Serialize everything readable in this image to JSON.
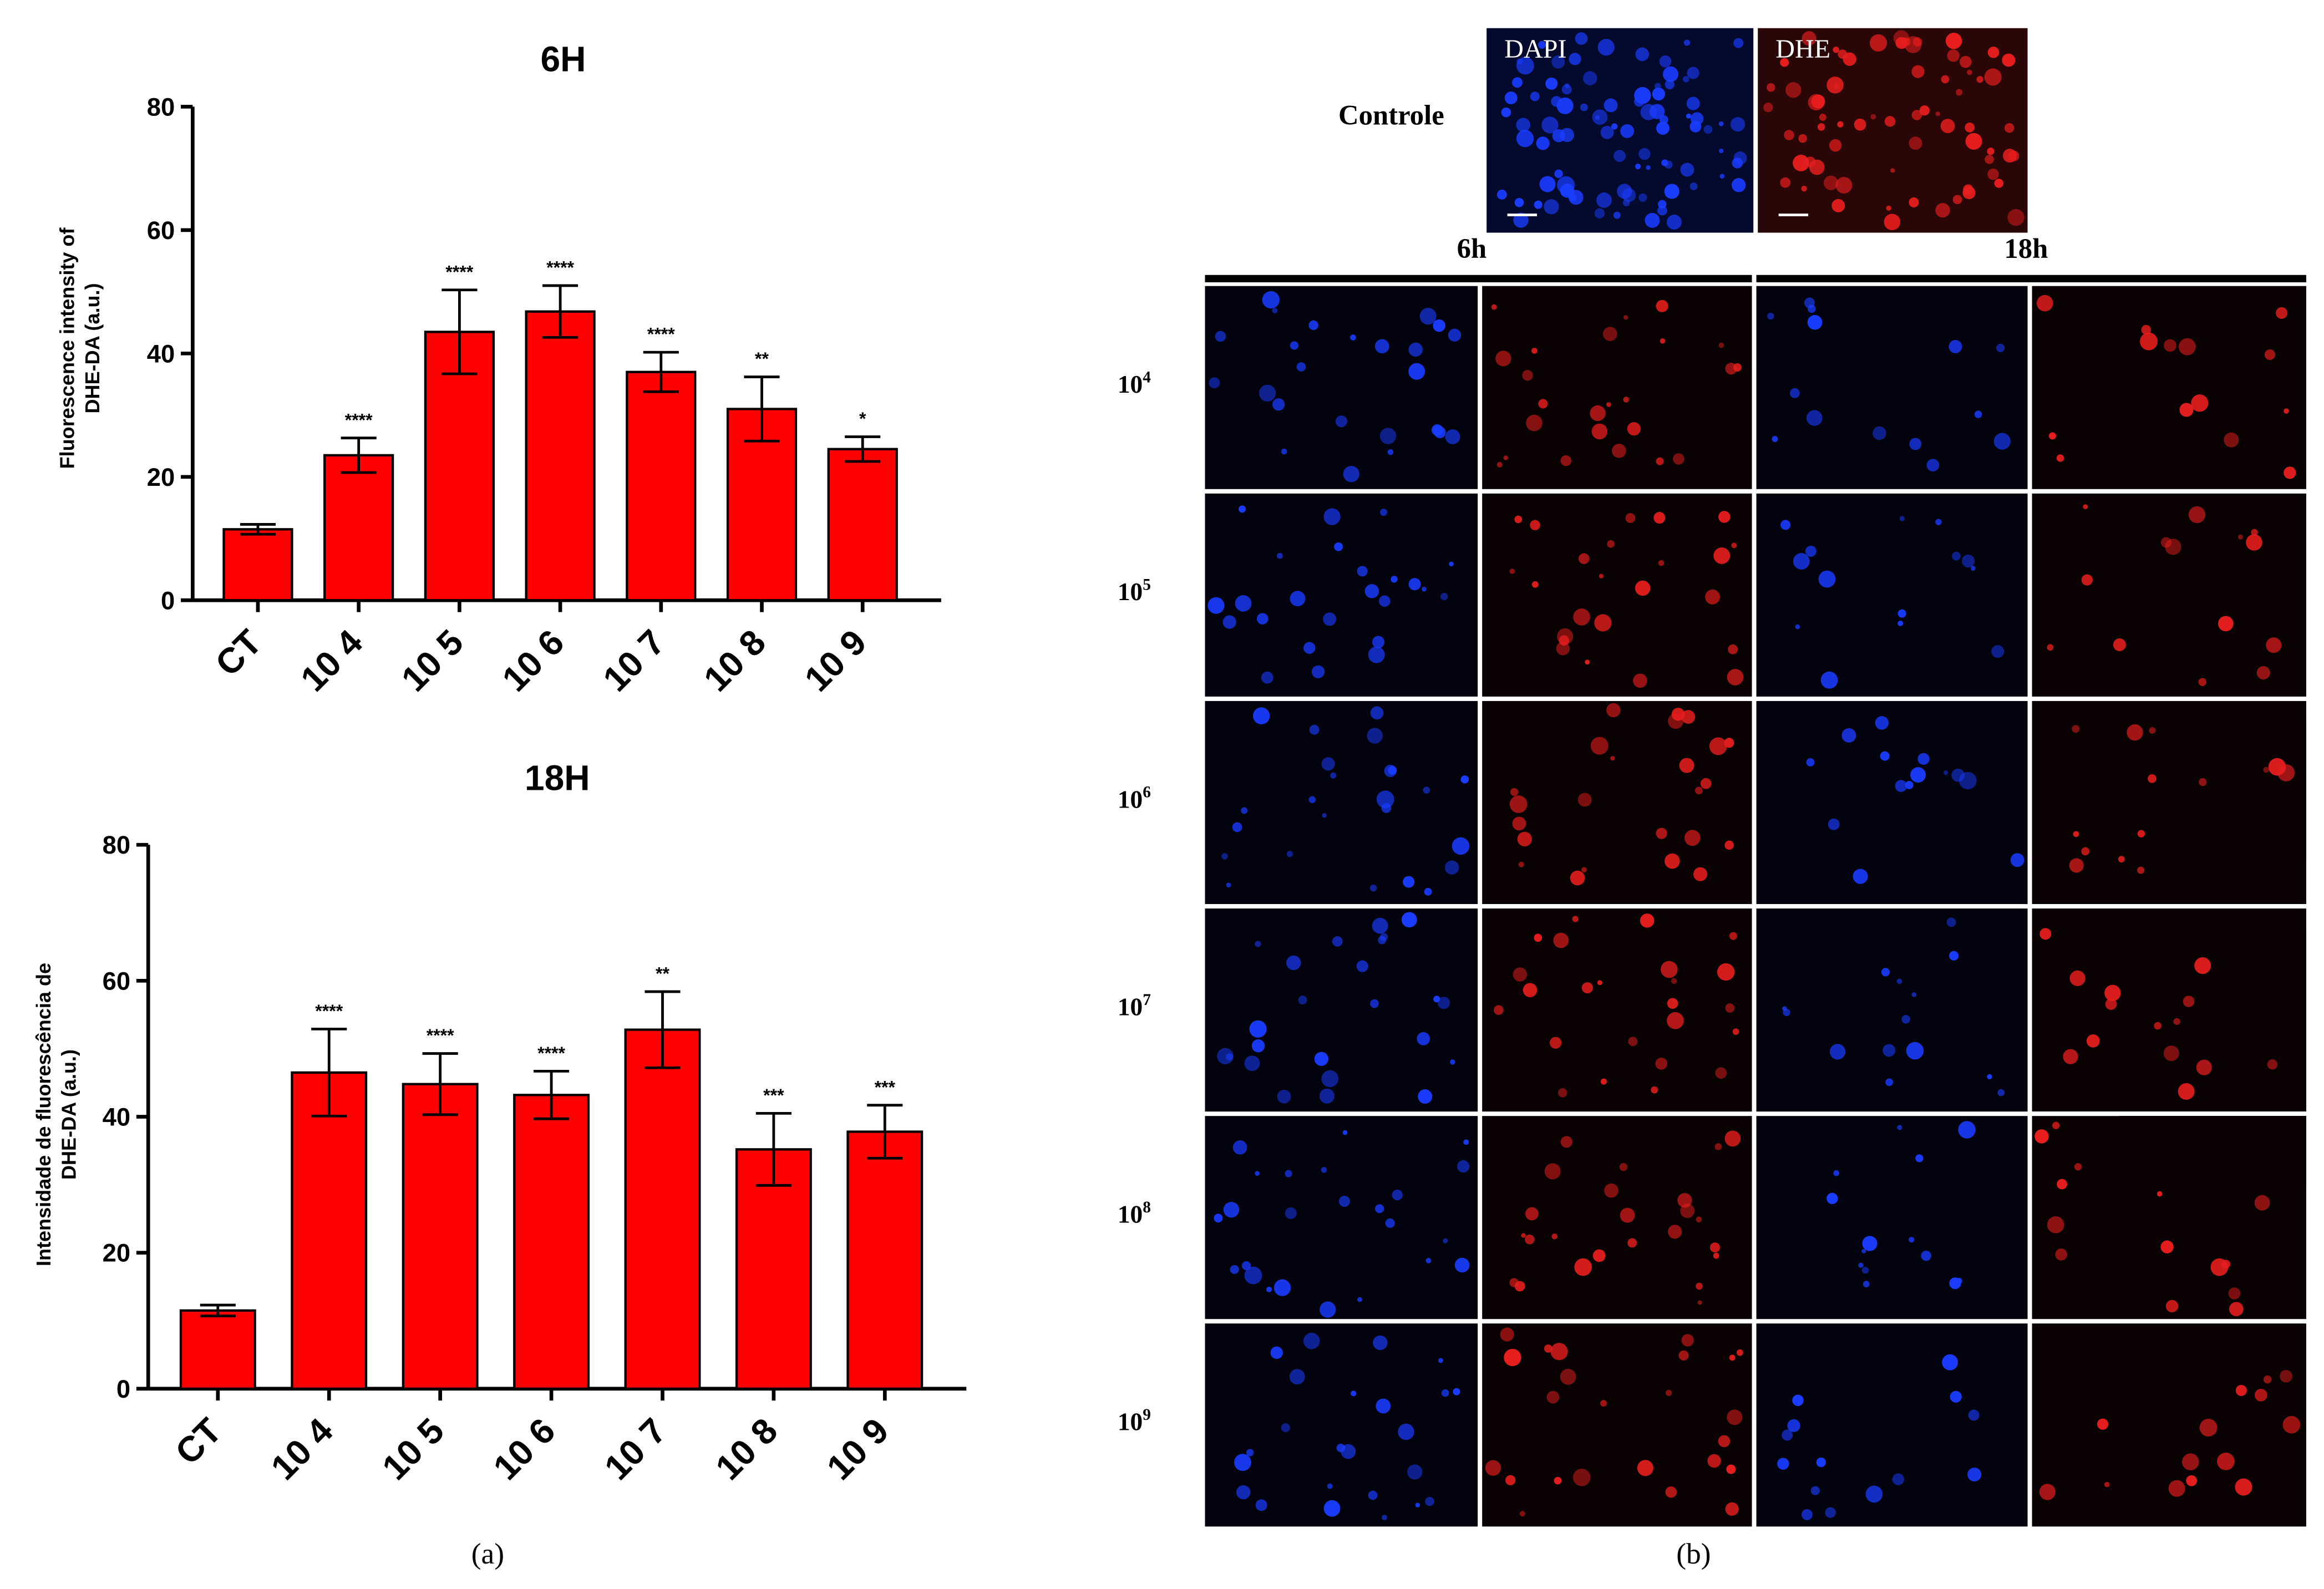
{
  "panel_a": {
    "caption": "(a)"
  },
  "panel_b": {
    "caption": "(b)",
    "control_label": "Controle",
    "dapi_label": "DAPI",
    "dhe_label": "DHE",
    "time_6h": "6h",
    "time_18h": "18h",
    "rows": [
      {
        "base": "10",
        "exp": "4"
      },
      {
        "base": "10",
        "exp": "5"
      },
      {
        "base": "10",
        "exp": "6"
      },
      {
        "base": "10",
        "exp": "7"
      },
      {
        "base": "10",
        "exp": "8"
      },
      {
        "base": "10",
        "exp": "9"
      }
    ],
    "colors": {
      "dapi_bg": "#030a2e",
      "dhe_bg": "#2a0606",
      "dapi_cell": "#1a3cff",
      "dhe_cell": "#e81e1e"
    }
  },
  "chart_data": [
    {
      "type": "bar",
      "title": "6H",
      "ylabel": [
        "Fluorescence intensity of",
        "DHE-DA (a.u.)"
      ],
      "ylim": [
        0,
        80
      ],
      "yticks": [
        "0",
        "20",
        "40",
        "60",
        "80"
      ],
      "categories": [
        "CT",
        "10 4",
        "10 5",
        "10 6",
        "10 7",
        "10 8",
        "10 9"
      ],
      "values": [
        11.5,
        23.5,
        43.5,
        46.8,
        37,
        31,
        24.5
      ],
      "errors": [
        0.8,
        2.8,
        6.8,
        4.2,
        3.2,
        5.2,
        2
      ],
      "significance": [
        "",
        "****",
        "****",
        "****",
        "****",
        "**",
        "*"
      ],
      "bar_color": "#ff0000"
    },
    {
      "type": "bar",
      "title": "18H",
      "ylabel": [
        "Intensidade de fluorescência de",
        "DHE-DA (a.u.)"
      ],
      "ylim": [
        0,
        80
      ],
      "yticks": [
        "0",
        "20",
        "40",
        "60",
        "80"
      ],
      "categories": [
        "CT",
        "10 4",
        "10 5",
        "10 6",
        "10 7",
        "10 8",
        "10 9"
      ],
      "values": [
        11.5,
        46.5,
        44.8,
        43.2,
        52.8,
        35.2,
        37.8
      ],
      "errors": [
        0.8,
        6.4,
        4.5,
        3.5,
        5.6,
        5.3,
        3.9
      ],
      "significance": [
        "",
        "****",
        "****",
        "****",
        "**",
        "***",
        "***"
      ],
      "bar_color": "#ff0000"
    }
  ]
}
